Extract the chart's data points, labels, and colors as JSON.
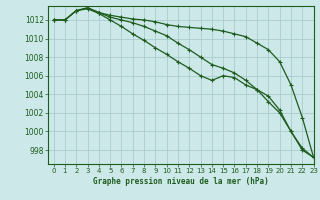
{
  "title": "Graphe pression niveau de la mer (hPa)",
  "background_color": "#cce8e8",
  "grid_color": "#aacccc",
  "line_color": "#1e5c1e",
  "xlim": [
    -0.5,
    23
  ],
  "ylim": [
    996.5,
    1013.5
  ],
  "yticks": [
    998,
    1000,
    1002,
    1004,
    1006,
    1008,
    1010,
    1012
  ],
  "xticks": [
    0,
    1,
    2,
    3,
    4,
    5,
    6,
    7,
    8,
    9,
    10,
    11,
    12,
    13,
    14,
    15,
    16,
    17,
    18,
    19,
    20,
    21,
    22,
    23
  ],
  "series": [
    [
      1012.0,
      1012.0,
      1013.0,
      1013.3,
      1012.8,
      1012.5,
      1012.3,
      1012.1,
      1012.0,
      1011.8,
      1011.5,
      1011.3,
      1011.2,
      1011.1,
      1011.0,
      1010.8,
      1010.5,
      1010.2,
      1009.5,
      1008.8,
      1007.5,
      1005.0,
      1001.5,
      997.2
    ],
    [
      1012.0,
      1012.0,
      1013.0,
      1013.3,
      1012.8,
      1012.3,
      1012.0,
      1011.7,
      1011.3,
      1010.8,
      1010.3,
      1009.5,
      1008.8,
      1008.0,
      1007.2,
      1006.8,
      1006.3,
      1005.5,
      1004.5,
      1003.2,
      1002.0,
      1000.0,
      998.0,
      997.2
    ],
    [
      1012.0,
      1012.0,
      1013.0,
      1013.2,
      1012.7,
      1012.0,
      1011.3,
      1010.5,
      1009.8,
      1009.0,
      1008.3,
      1007.5,
      1006.8,
      1006.0,
      1005.5,
      1006.0,
      1005.8,
      1005.0,
      1004.5,
      1003.8,
      1002.3,
      1000.0,
      998.2,
      997.2
    ]
  ]
}
